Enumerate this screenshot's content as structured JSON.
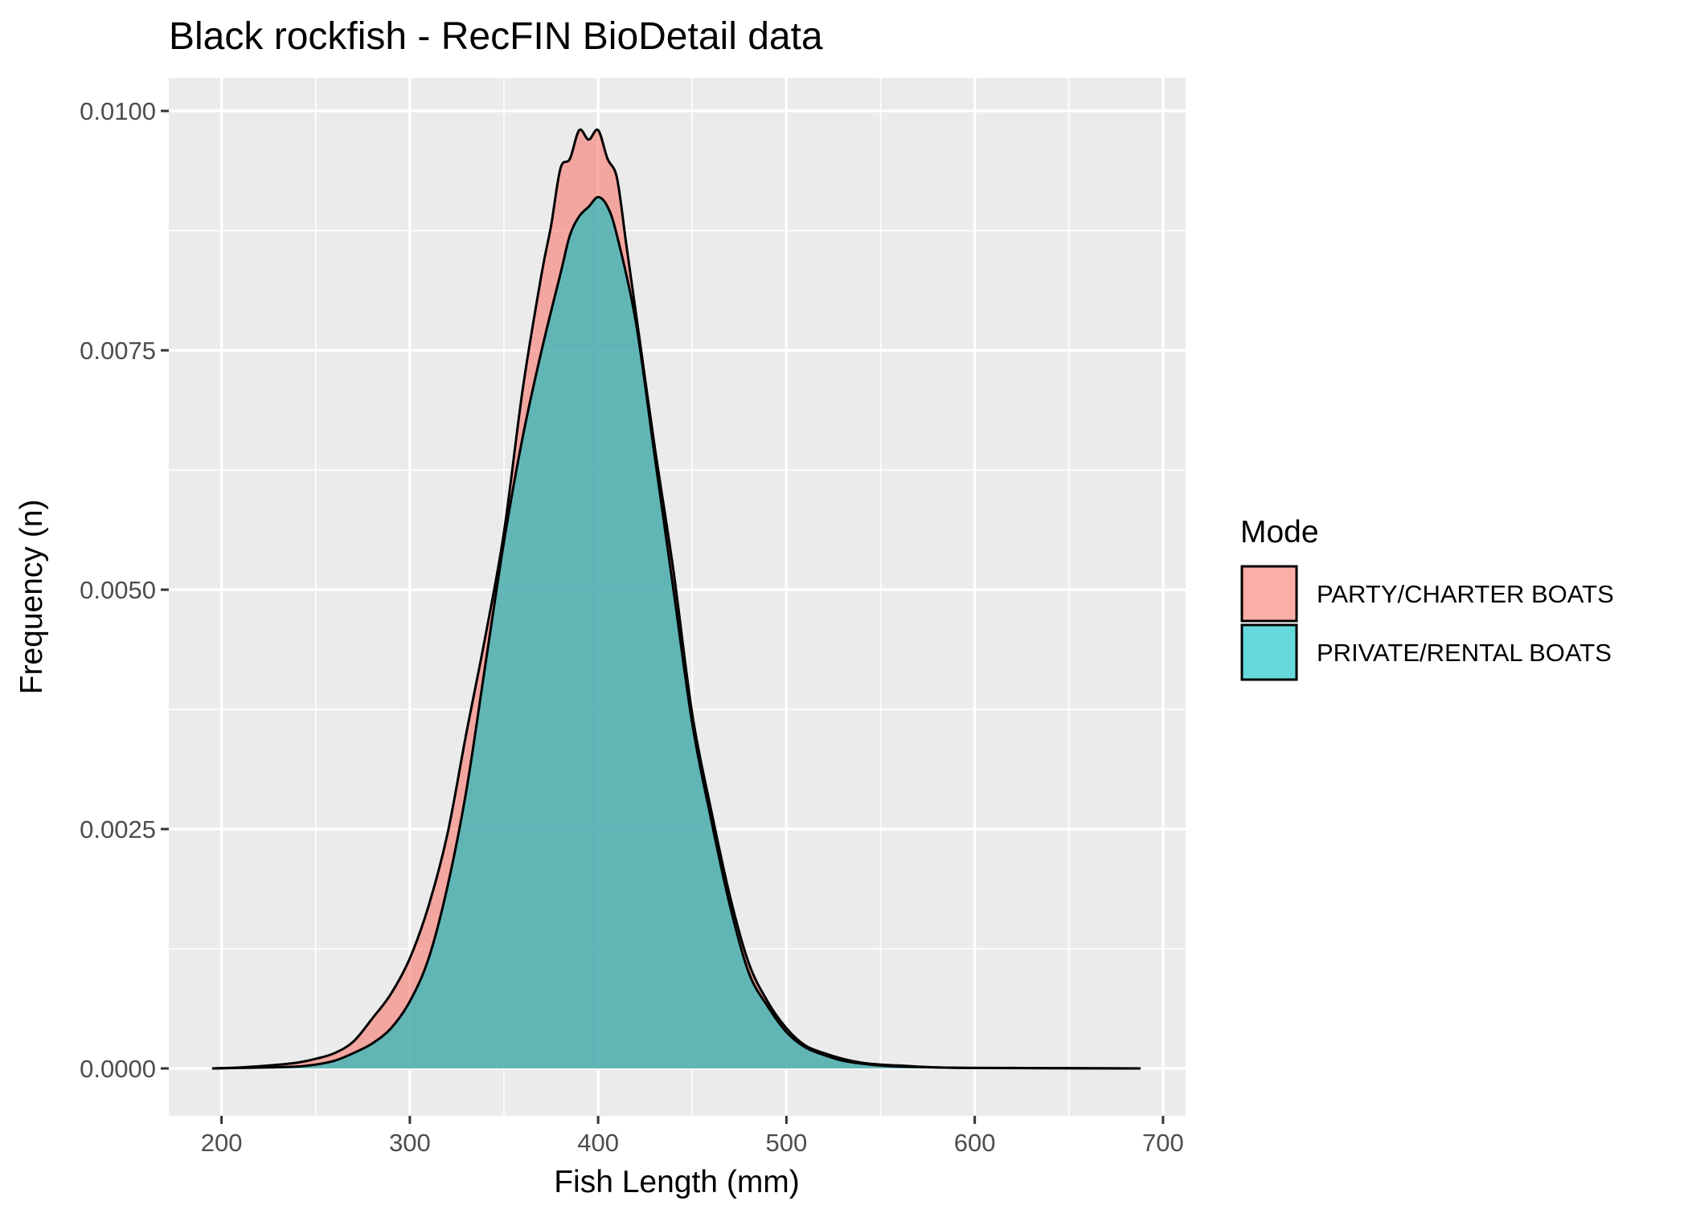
{
  "chart_data": {
    "type": "area",
    "title": "Black rockfish - RecFIN BioDetail data",
    "xlabel": "Fish Length (mm)",
    "ylabel": "Frequency (n)",
    "xlim": [
      172,
      712
    ],
    "ylim": [
      -0.000495,
      0.010345
    ],
    "x_ticks": [
      200,
      300,
      400,
      500,
      600,
      700
    ],
    "x_tick_labels": [
      "200",
      "300",
      "400",
      "500",
      "600",
      "700"
    ],
    "y_ticks": [
      0,
      0.0025,
      0.005,
      0.0075,
      0.01
    ],
    "y_tick_labels": [
      "0.0000",
      "0.0025",
      "0.0050",
      "0.0075",
      "0.0100"
    ],
    "grid": true,
    "legend": {
      "title": "Mode",
      "position": "right"
    },
    "series": [
      {
        "name": "PARTY/CHARTER BOATS",
        "color": "#F8766D",
        "x": [
          195,
          210,
          225,
          240,
          250,
          260,
          270,
          280,
          290,
          300,
          310,
          320,
          330,
          340,
          350,
          360,
          370,
          375,
          380,
          385,
          390,
          395,
          400,
          405,
          410,
          415,
          420,
          430,
          440,
          450,
          460,
          470,
          480,
          490,
          500,
          510,
          520,
          530,
          540,
          550,
          560,
          580,
          600,
          620,
          640,
          660,
          688
        ],
        "y": [
          0,
          1e-05,
          3e-05,
          6e-05,
          0.0001,
          0.00016,
          0.00028,
          0.00052,
          0.00078,
          0.00115,
          0.0017,
          0.00245,
          0.0035,
          0.0045,
          0.0056,
          0.0071,
          0.0083,
          0.0088,
          0.0094,
          0.0095,
          0.0098,
          0.0097,
          0.0098,
          0.0095,
          0.0093,
          0.0086,
          0.0079,
          0.0065,
          0.0052,
          0.0037,
          0.0027,
          0.0018,
          0.0011,
          0.0007,
          0.00042,
          0.00024,
          0.00016,
          0.0001,
          6e-05,
          4e-05,
          3e-05,
          1e-05,
          5e-06,
          5e-06,
          3e-06,
          2e-06,
          0
        ]
      },
      {
        "name": "PRIVATE/RENTAL BOATS",
        "color": "#00BFC4",
        "x": [
          195,
          210,
          225,
          240,
          250,
          260,
          270,
          280,
          290,
          300,
          310,
          320,
          330,
          340,
          350,
          360,
          370,
          380,
          385,
          390,
          395,
          400,
          405,
          410,
          420,
          430,
          440,
          450,
          460,
          470,
          480,
          490,
          500,
          510,
          520,
          530,
          540,
          550,
          560,
          580,
          600,
          620,
          640,
          660,
          688
        ],
        "y": [
          0,
          5e-06,
          1e-05,
          2e-05,
          4e-05,
          8e-05,
          0.00016,
          0.00026,
          0.00042,
          0.0007,
          0.00115,
          0.0019,
          0.0029,
          0.0042,
          0.0055,
          0.0066,
          0.0075,
          0.0083,
          0.0087,
          0.0089,
          0.009,
          0.0091,
          0.009,
          0.0087,
          0.0078,
          0.0064,
          0.005,
          0.0036,
          0.0026,
          0.0017,
          0.001,
          0.00065,
          0.00038,
          0.00022,
          0.00014,
          8e-05,
          5e-05,
          3e-05,
          2e-05,
          1e-05,
          5e-06,
          3e-06,
          2e-06,
          1e-06,
          0
        ]
      }
    ]
  }
}
